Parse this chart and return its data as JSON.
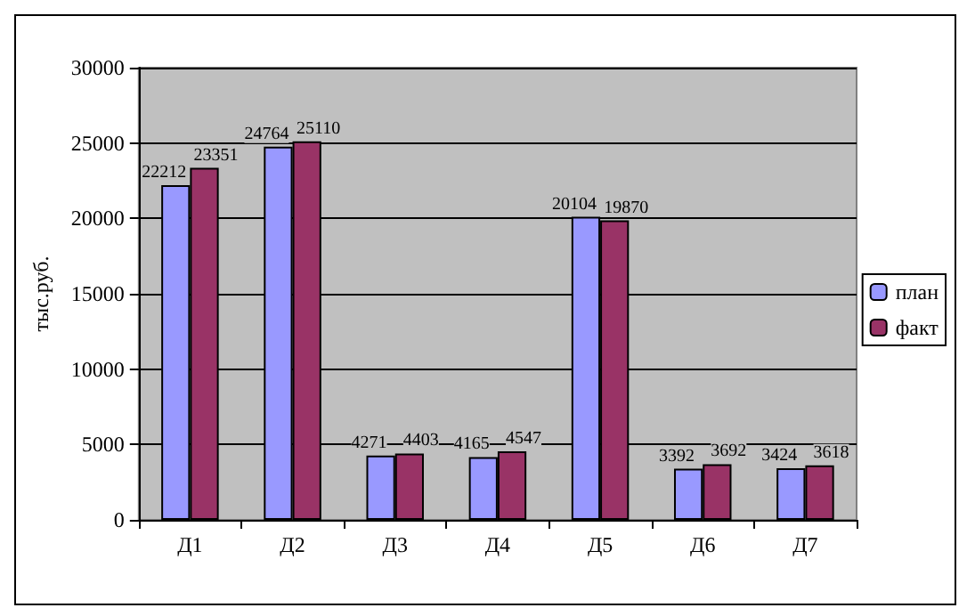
{
  "chart_data": {
    "type": "bar",
    "ylabel": "тыс.руб.",
    "categories": [
      "Д1",
      "Д2",
      "Д3",
      "Д4",
      "Д5",
      "Д6",
      "Д7"
    ],
    "series": [
      {
        "name": "план",
        "color": "#9999ff",
        "values": [
          22212,
          24764,
          4271,
          4165,
          20104,
          3392,
          3424
        ]
      },
      {
        "name": "факт",
        "color": "#993366",
        "values": [
          23351,
          25110,
          4403,
          4547,
          19870,
          3692,
          3618
        ]
      }
    ],
    "ylim": [
      0,
      30000
    ],
    "yticks": [
      0,
      5000,
      10000,
      15000,
      20000,
      25000,
      30000
    ],
    "grid": "y",
    "legend": "right",
    "data_labels": true
  }
}
